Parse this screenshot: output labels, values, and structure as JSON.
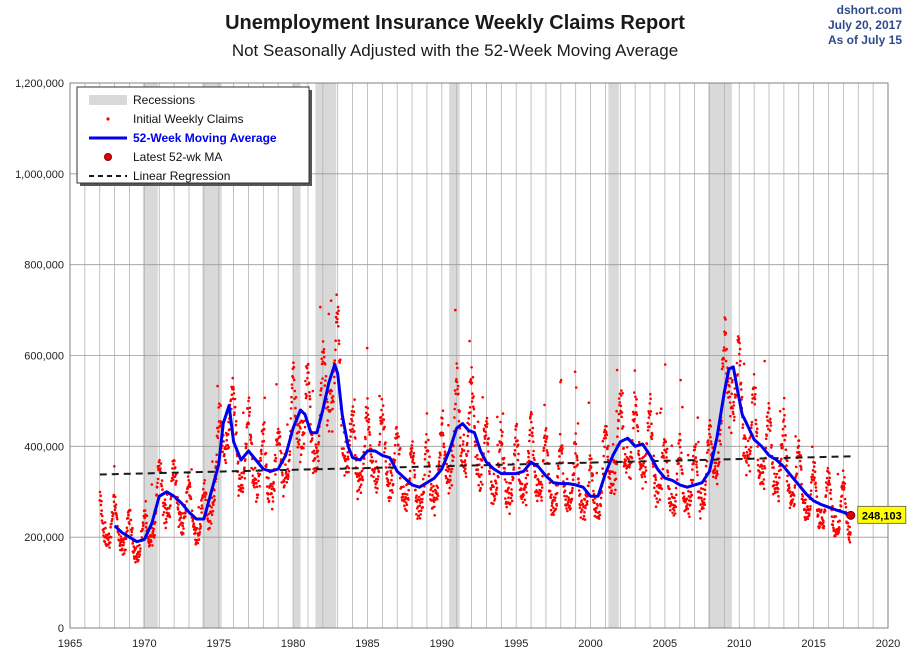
{
  "title": "Unemployment Insurance Weekly Claims Report",
  "subtitle": "Not Seasonally Adjusted with the 52-Week Moving Average",
  "source": {
    "site": "dshort.com",
    "date": "July 20, 2017",
    "as_of": "As of July 15"
  },
  "colors": {
    "recession": "#d9d9d9",
    "claims_dot": "#ff0000",
    "moving_average": "#0000ee",
    "regression": "#1a1a1a",
    "latest_label_bg": "#ffff00"
  },
  "chart_data": {
    "type": "scatter",
    "xlim": [
      1965,
      2020
    ],
    "ylim": [
      0,
      1200000
    ],
    "x_ticks": [
      "1965",
      "1970",
      "1975",
      "1980",
      "1985",
      "1990",
      "1995",
      "2000",
      "2005",
      "2010",
      "2015",
      "2020"
    ],
    "y_ticks": [
      "0",
      "200,000",
      "400,000",
      "600,000",
      "800,000",
      "1,000,000",
      "1,200,000"
    ],
    "grid": true,
    "legend_position": "top-left",
    "legend": {
      "recessions": "Recessions",
      "claims": "Initial Weekly Claims",
      "ma": "52-Week Moving Average",
      "latest": "Latest 52-wk MA",
      "regression": "Linear Regression"
    },
    "recessions": [
      [
        1969.9,
        1970.9
      ],
      [
        1973.9,
        1975.2
      ],
      [
        1980.0,
        1980.5
      ],
      [
        1981.5,
        1982.9
      ],
      [
        1990.5,
        1991.2
      ],
      [
        2001.2,
        2001.9
      ],
      [
        2007.9,
        2009.5
      ]
    ],
    "moving_average": {
      "name": "52-Week Moving Average",
      "x": [
        1968.0,
        1968.5,
        1969.0,
        1969.5,
        1970.0,
        1970.5,
        1971.0,
        1971.5,
        1972.0,
        1972.5,
        1973.0,
        1973.5,
        1974.0,
        1974.5,
        1975.0,
        1975.3,
        1975.7,
        1976.0,
        1976.5,
        1977.0,
        1977.5,
        1978.0,
        1978.5,
        1979.0,
        1979.5,
        1980.0,
        1980.5,
        1980.8,
        1981.2,
        1981.6,
        1982.0,
        1982.4,
        1982.8,
        1983.0,
        1983.3,
        1983.7,
        1984.0,
        1984.5,
        1985.0,
        1985.5,
        1986.0,
        1986.5,
        1987.0,
        1987.5,
        1988.0,
        1988.5,
        1989.0,
        1989.5,
        1990.0,
        1990.5,
        1991.0,
        1991.4,
        1991.8,
        1992.2,
        1992.6,
        1993.0,
        1993.5,
        1994.0,
        1994.5,
        1995.0,
        1995.5,
        1996.0,
        1996.5,
        1997.0,
        1997.5,
        1998.0,
        1998.5,
        1999.0,
        1999.5,
        2000.0,
        2000.5,
        2001.0,
        2001.5,
        2002.0,
        2002.5,
        2003.0,
        2003.5,
        2004.0,
        2004.5,
        2005.0,
        2005.5,
        2006.0,
        2006.5,
        2007.0,
        2007.5,
        2008.0,
        2008.5,
        2009.0,
        2009.3,
        2009.6,
        2009.9,
        2010.2,
        2010.5,
        2011.0,
        2011.5,
        2012.0,
        2012.5,
        2013.0,
        2013.5,
        2014.0,
        2014.5,
        2015.0,
        2015.5,
        2016.0,
        2016.5,
        2017.0,
        2017.45
      ],
      "values": [
        225000,
        210000,
        200000,
        190000,
        195000,
        230000,
        290000,
        300000,
        290000,
        275000,
        255000,
        240000,
        240000,
        300000,
        360000,
        450000,
        490000,
        410000,
        370000,
        390000,
        370000,
        350000,
        345000,
        350000,
        380000,
        440000,
        480000,
        470000,
        430000,
        430000,
        480000,
        540000,
        580000,
        560000,
        470000,
        400000,
        375000,
        370000,
        390000,
        390000,
        380000,
        375000,
        345000,
        330000,
        315000,
        310000,
        320000,
        330000,
        350000,
        390000,
        440000,
        450000,
        435000,
        430000,
        390000,
        365000,
        350000,
        340000,
        340000,
        340000,
        345000,
        365000,
        355000,
        335000,
        320000,
        318000,
        318000,
        315000,
        310000,
        290000,
        290000,
        340000,
        380000,
        410000,
        418000,
        400000,
        405000,
        380000,
        350000,
        330000,
        325000,
        315000,
        310000,
        315000,
        320000,
        345000,
        420000,
        520000,
        570000,
        575000,
        520000,
        470000,
        450000,
        415000,
        400000,
        380000,
        370000,
        355000,
        335000,
        315000,
        295000,
        280000,
        272000,
        266000,
        260000,
        255000,
        248103
      ]
    },
    "regression": {
      "name": "Linear Regression",
      "x": [
        1967.0,
        2017.5
      ],
      "values": [
        338000,
        378000
      ]
    },
    "latest": {
      "name": "Latest 52-wk MA",
      "x": 2017.5,
      "value": 248103,
      "label": "248,103"
    },
    "claims_model": {
      "name": "Initial Weekly Claims",
      "start_year": 1967.0,
      "end_year": 2017.5,
      "samples_per_year": 52,
      "seasonal_amplitude": 0.22,
      "noise": 0.12
    }
  }
}
